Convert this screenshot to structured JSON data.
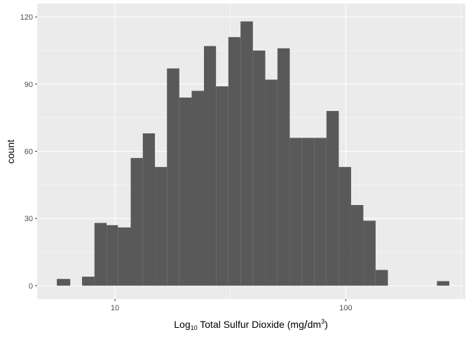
{
  "chart_data": {
    "type": "bar",
    "title": "",
    "xlabel": {
      "prefix": "Log",
      "sub": "10",
      "main": " Total Sulfur Dioxide (mg",
      "slash": "/",
      "unit": "dm",
      "sup": "3",
      "close": ")"
    },
    "ylabel": "count",
    "x_scale": "log10",
    "xlim": [
      4.6,
      330
    ],
    "ylim": [
      -6,
      126
    ],
    "x_ticks": [
      {
        "value": 10,
        "label": "10"
      },
      {
        "value": 100,
        "label": "100"
      }
    ],
    "y_ticks": [
      {
        "value": 0,
        "label": "0"
      },
      {
        "value": 30,
        "label": "30"
      },
      {
        "value": 60,
        "label": "60"
      },
      {
        "value": 90,
        "label": "90"
      },
      {
        "value": 120,
        "label": "120"
      }
    ],
    "x_minor_ticks": [
      31.6,
      316
    ],
    "y_minor_ticks": [
      15,
      45,
      75,
      105
    ],
    "grid": true,
    "bar_color": "#595959",
    "panel_color": "#ebebeb",
    "bins": [
      {
        "x0": 5.6,
        "x1": 6.4,
        "count": 3
      },
      {
        "x0": 6.4,
        "x1": 7.2,
        "count": 0
      },
      {
        "x0": 7.2,
        "x1": 8.15,
        "count": 4
      },
      {
        "x0": 8.15,
        "x1": 9.2,
        "count": 28
      },
      {
        "x0": 9.2,
        "x1": 10.3,
        "count": 27
      },
      {
        "x0": 10.3,
        "x1": 11.7,
        "count": 26
      },
      {
        "x0": 11.7,
        "x1": 13.2,
        "count": 57
      },
      {
        "x0": 13.2,
        "x1": 14.9,
        "count": 68
      },
      {
        "x0": 14.9,
        "x1": 16.8,
        "count": 53
      },
      {
        "x0": 16.8,
        "x1": 19.0,
        "count": 97
      },
      {
        "x0": 19.0,
        "x1": 21.5,
        "count": 84
      },
      {
        "x0": 21.5,
        "x1": 24.3,
        "count": 87
      },
      {
        "x0": 24.3,
        "x1": 27.4,
        "count": 107
      },
      {
        "x0": 27.4,
        "x1": 31.0,
        "count": 89
      },
      {
        "x0": 31.0,
        "x1": 35.0,
        "count": 111
      },
      {
        "x0": 35.0,
        "x1": 39.6,
        "count": 118
      },
      {
        "x0": 39.6,
        "x1": 44.8,
        "count": 105
      },
      {
        "x0": 44.8,
        "x1": 50.6,
        "count": 92
      },
      {
        "x0": 50.6,
        "x1": 57.2,
        "count": 106
      },
      {
        "x0": 57.2,
        "x1": 64.6,
        "count": 66
      },
      {
        "x0": 64.6,
        "x1": 73.0,
        "count": 66
      },
      {
        "x0": 73.0,
        "x1": 82.5,
        "count": 66
      },
      {
        "x0": 82.5,
        "x1": 93.3,
        "count": 78
      },
      {
        "x0": 93.3,
        "x1": 105.5,
        "count": 53
      },
      {
        "x0": 105.5,
        "x1": 119.2,
        "count": 36
      },
      {
        "x0": 119.2,
        "x1": 134.7,
        "count": 29
      },
      {
        "x0": 134.7,
        "x1": 152.3,
        "count": 7
      },
      {
        "x0": 152.3,
        "x1": 172.1,
        "count": 0
      },
      {
        "x0": 172.1,
        "x1": 194.5,
        "count": 0
      },
      {
        "x0": 194.5,
        "x1": 219.9,
        "count": 0
      },
      {
        "x0": 219.9,
        "x1": 248.5,
        "count": 0
      },
      {
        "x0": 248.5,
        "x1": 280.9,
        "count": 2
      }
    ]
  }
}
